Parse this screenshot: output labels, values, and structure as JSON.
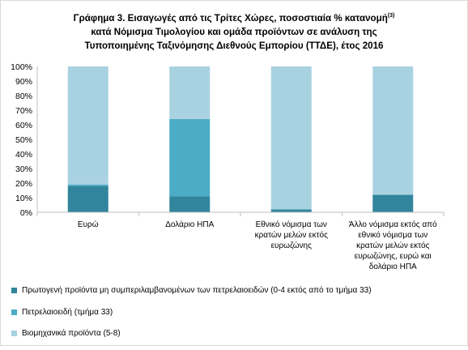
{
  "title": {
    "line1": "Γράφημα 3. Εισαγωγές από  τις Τρίτες Χώρες, ποσοστιαία % κατανομή",
    "line1_sup": "(3)",
    "line2": "κατά Νόμισμα Τιμολογίου και ομάδα προϊόντων σε ανάλυση της",
    "line3": "Τυποποιημένης Ταξινόμησης Διεθνούς Εμπορίου (ΤΤΔΕ), έτος 2016"
  },
  "chart_data": {
    "type": "bar",
    "stacked": true,
    "title": "Γράφημα 3. Εισαγωγές από  τις Τρίτες Χώρες, ποσοστιαία % κατανομή(3) κατά Νόμισμα Τιμολογίου και ομάδα προϊόντων σε ανάλυση της Τυποποιημένης Ταξινόμησης Διεθνούς Εμπορίου (ΤΤΔΕ), έτος 2016",
    "categories": [
      [
        "Ευρώ"
      ],
      [
        "Δολάριο ΗΠΑ"
      ],
      [
        "Εθνικό νόμισμα των",
        "κρατών μελών εκτός",
        "ευρωζώνης"
      ],
      [
        "Άλλο νόμισμα εκτός από",
        "εθνικό νόμισμα των",
        "κρατών μελών εκτός",
        "ευρωζώνης, ευρώ και",
        "δολάριο ΗΠΑ"
      ]
    ],
    "series": [
      {
        "name": "Πρωτογενή προϊόντα μη συμπεριλαμβανομένων των πετρελαιοειδών (0-4 εκτός από το τμήμα 33)",
        "color": "#31859c",
        "values": [
          18,
          11,
          2,
          12
        ]
      },
      {
        "name": "Πετρελαιοειδή (τμήμα 33)",
        "color": "#4bacc6",
        "values": [
          1,
          53,
          0,
          0
        ]
      },
      {
        "name": "Βιομηχανικά προϊόντα (5-8)",
        "color": "#a9d2e1",
        "values": [
          81,
          36,
          98,
          88
        ]
      }
    ],
    "ylim": [
      0,
      100
    ],
    "yticks": [
      "0%",
      "10%",
      "20%",
      "30%",
      "40%",
      "50%",
      "60%",
      "70%",
      "80%",
      "90%",
      "100%"
    ],
    "grid": false,
    "legend_position": "bottom"
  }
}
